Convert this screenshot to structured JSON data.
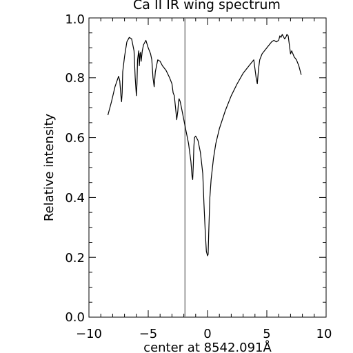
{
  "chart_data": {
    "type": "line",
    "title": "Ca II IR wing spectrum",
    "xlabel": "center at 8542.091Å",
    "ylabel": "Relative intensity",
    "xlim": [
      -10,
      10
    ],
    "ylim": [
      0,
      1
    ],
    "xticks": [
      "−10",
      "−5",
      "0",
      "5",
      "10"
    ],
    "yticks": [
      "0.0",
      "0.2",
      "0.4",
      "0.6",
      "0.8",
      "1.0"
    ],
    "grid": false,
    "vertical_line": {
      "x": -1.9,
      "color": "#808080"
    },
    "series": [
      {
        "color": "#000000",
        "x": [
          -8.4,
          -8.1,
          -7.8,
          -7.5,
          -7.4,
          -7.3,
          -7.25,
          -7.2,
          -7.15,
          -7.0,
          -6.8,
          -6.6,
          -6.4,
          -6.2,
          -6.1,
          -6.0,
          -5.95,
          -5.9,
          -5.8,
          -5.75,
          -5.7,
          -5.65,
          -5.6,
          -5.5,
          -5.4,
          -5.2,
          -5.0,
          -4.8,
          -4.7,
          -4.6,
          -4.5,
          -4.4,
          -4.2,
          -4.0,
          -3.8,
          -3.5,
          -3.2,
          -3.0,
          -2.9,
          -2.8,
          -2.7,
          -2.6,
          -2.5,
          -2.45,
          -2.4,
          -2.35,
          -2.3,
          -2.2,
          -2.0,
          -1.8,
          -1.6,
          -1.5,
          -1.4,
          -1.3,
          -1.25,
          -1.2,
          -1.15,
          -1.1,
          -1.0,
          -0.8,
          -0.6,
          -0.4,
          -0.3,
          -0.2,
          -0.1,
          0.0,
          0.05,
          0.1,
          0.2,
          0.3,
          0.5,
          0.7,
          1.0,
          1.5,
          2.0,
          2.5,
          3.0,
          3.5,
          3.9,
          4.1,
          4.2,
          4.3,
          4.4,
          4.6,
          5.0,
          5.4,
          5.6,
          5.8,
          6.0,
          6.1,
          6.2,
          6.3,
          6.5,
          6.6,
          6.7,
          6.8,
          6.9,
          7.0,
          7.1,
          7.3,
          7.5,
          7.7,
          7.9
        ],
        "y": [
          0.675,
          0.72,
          0.77,
          0.805,
          0.79,
          0.74,
          0.72,
          0.75,
          0.82,
          0.87,
          0.92,
          0.935,
          0.93,
          0.89,
          0.8,
          0.74,
          0.78,
          0.86,
          0.89,
          0.84,
          0.88,
          0.885,
          0.855,
          0.89,
          0.91,
          0.925,
          0.9,
          0.88,
          0.86,
          0.8,
          0.77,
          0.82,
          0.86,
          0.855,
          0.84,
          0.825,
          0.8,
          0.78,
          0.75,
          0.74,
          0.7,
          0.66,
          0.69,
          0.72,
          0.73,
          0.725,
          0.72,
          0.7,
          0.66,
          0.62,
          0.58,
          0.55,
          0.52,
          0.47,
          0.46,
          0.51,
          0.57,
          0.6,
          0.605,
          0.59,
          0.55,
          0.48,
          0.38,
          0.29,
          0.22,
          0.205,
          0.21,
          0.28,
          0.4,
          0.46,
          0.53,
          0.58,
          0.63,
          0.69,
          0.74,
          0.78,
          0.815,
          0.84,
          0.86,
          0.8,
          0.78,
          0.83,
          0.86,
          0.88,
          0.9,
          0.92,
          0.925,
          0.92,
          0.925,
          0.94,
          0.935,
          0.945,
          0.93,
          0.935,
          0.945,
          0.94,
          0.91,
          0.88,
          0.89,
          0.87,
          0.86,
          0.84,
          0.81
        ]
      }
    ]
  }
}
